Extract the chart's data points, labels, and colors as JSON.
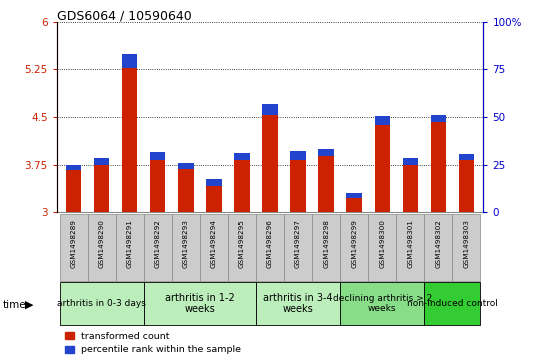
{
  "title": "GDS6064 / 10590640",
  "samples": [
    "GSM1498289",
    "GSM1498290",
    "GSM1498291",
    "GSM1498292",
    "GSM1498293",
    "GSM1498294",
    "GSM1498295",
    "GSM1498296",
    "GSM1498297",
    "GSM1498298",
    "GSM1498299",
    "GSM1498300",
    "GSM1498301",
    "GSM1498302",
    "GSM1498303"
  ],
  "red_values": [
    3.67,
    3.75,
    5.27,
    3.83,
    3.68,
    3.42,
    3.82,
    4.53,
    3.82,
    3.88,
    3.22,
    4.38,
    3.75,
    4.42,
    3.82
  ],
  "blue_values": [
    0.08,
    0.1,
    0.22,
    0.12,
    0.1,
    0.1,
    0.12,
    0.18,
    0.15,
    0.12,
    0.08,
    0.14,
    0.1,
    0.12,
    0.1
  ],
  "ylim_left": [
    3.0,
    6.0
  ],
  "ylim_right": [
    0,
    100
  ],
  "yticks_left": [
    3.0,
    3.75,
    4.5,
    5.25,
    6.0
  ],
  "yticks_right": [
    0,
    25,
    50,
    75,
    100
  ],
  "ytick_labels_left": [
    "3",
    "3.75",
    "4.5",
    "5.25",
    "6"
  ],
  "ytick_labels_right": [
    "0",
    "25",
    "50",
    "75",
    "100%"
  ],
  "groups": [
    {
      "label": "arthritis in 0-3 days",
      "indices": [
        0,
        1,
        2
      ],
      "color": "#bbeebb",
      "fontsize": 6.5
    },
    {
      "label": "arthritis in 1-2\nweeks",
      "indices": [
        3,
        4,
        5,
        6
      ],
      "color": "#bbeebb",
      "fontsize": 7
    },
    {
      "label": "arthritis in 3-4\nweeks",
      "indices": [
        7,
        8,
        9
      ],
      "color": "#bbeebb",
      "fontsize": 7
    },
    {
      "label": "declining arthritis > 2\nweeks",
      "indices": [
        10,
        11,
        12
      ],
      "color": "#88dd88",
      "fontsize": 6.5
    },
    {
      "label": "non-induced control",
      "indices": [
        13,
        14
      ],
      "color": "#33cc33",
      "fontsize": 6.5
    }
  ],
  "bar_color_red": "#cc2200",
  "bar_color_blue": "#2244cc",
  "bar_width": 0.55,
  "grid_color": "black",
  "left_axis_color": "#cc2200",
  "right_axis_color": "#0000cc",
  "base": 3.0,
  "sample_box_color": "#cccccc"
}
